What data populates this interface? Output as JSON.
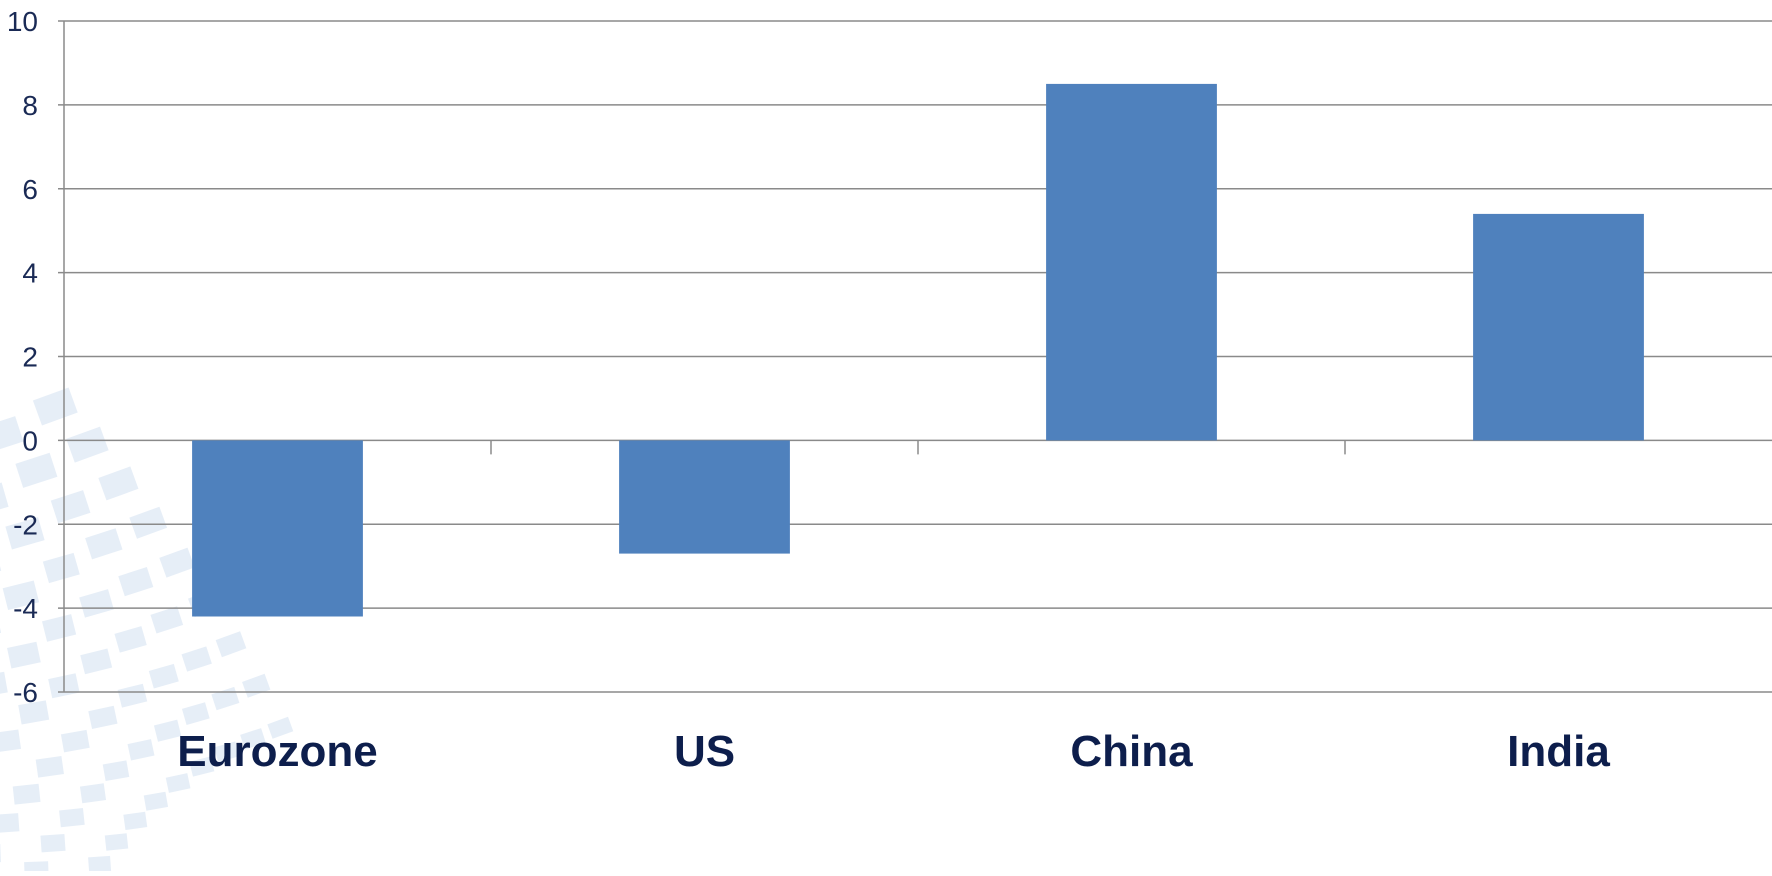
{
  "chart_data": {
    "type": "bar",
    "title": "",
    "xlabel": "",
    "ylabel": "",
    "categories": [
      "Eurozone",
      "US",
      "China",
      "India"
    ],
    "values": [
      -4.2,
      -2.7,
      8.5,
      5.4
    ],
    "ylim": [
      -6,
      10
    ],
    "yticks": [
      10,
      8,
      6,
      4,
      2,
      0,
      -2,
      -4,
      -6
    ],
    "grid": true,
    "legend": "none",
    "colors": {
      "bar": "#4f81bd",
      "grid": "#8a8a8a",
      "axis_text": "#1a2a55",
      "category_text": "#0d1e4c",
      "background_pattern": "#dbe7f4"
    }
  }
}
